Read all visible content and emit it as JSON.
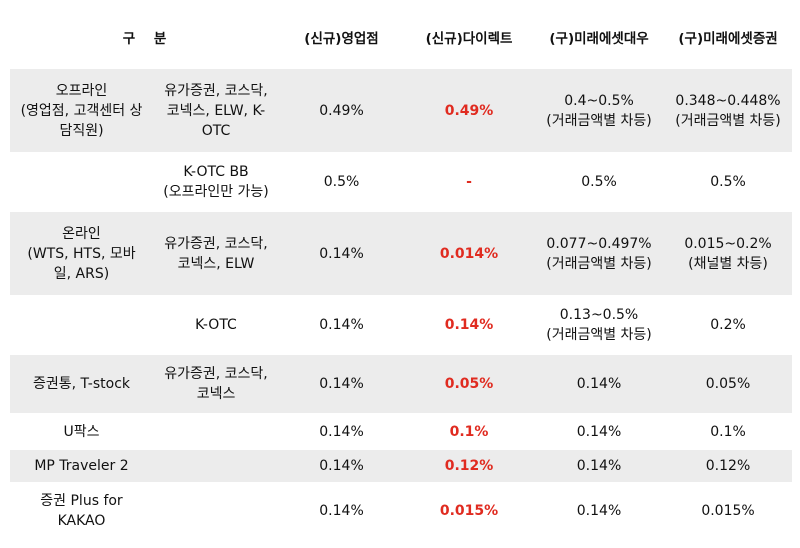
{
  "header": {
    "col1": "구    분",
    "col3": "(신규)영업점",
    "col4": "(신규)다이렉트",
    "col5": "(구)미래에셋대우",
    "col6": "(구)미래에셋증권"
  },
  "rows": [
    {
      "cat": "오프라인\n(영업점, 고객센터 상\n담직원)",
      "sub": "유가증권, 코스닥,\n코넥스, ELW, K-\nOTC",
      "v1": "0.49%",
      "v2": "0.49%",
      "v3": "0.4~0.5%\n(거래금액별 차등)",
      "v4": "0.348~0.448%\n(거래금액별 차등)"
    },
    {
      "cat": "",
      "sub": "K-OTC BB\n(오프라인만 가능)",
      "v1": "0.5%",
      "v2": "-",
      "v3": "0.5%",
      "v4": "0.5%"
    },
    {
      "cat": "온라인\n(WTS, HTS, 모바\n일, ARS)",
      "sub": "유가증권, 코스닥,\n코넥스, ELW",
      "v1": "0.14%",
      "v2": "0.014%",
      "v3": "0.077~0.497%\n(거래금액별 차등)",
      "v4": "0.015~0.2%\n(채널별 차등)"
    },
    {
      "cat": "",
      "sub": "K-OTC",
      "v1": "0.14%",
      "v2": "0.14%",
      "v3": "0.13~0.5%\n(거래금액별 차등)",
      "v4": "0.2%"
    },
    {
      "cat": "증권통, T-stock",
      "sub": "유가증권, 코스닥,\n코넥스",
      "v1": "0.14%",
      "v2": "0.05%",
      "v3": "0.14%",
      "v4": "0.05%"
    },
    {
      "cat": "U팍스",
      "sub": "",
      "v1": "0.14%",
      "v2": "0.1%",
      "v3": "0.14%",
      "v4": "0.1%"
    },
    {
      "cat": "MP Traveler 2",
      "sub": "",
      "v1": "0.14%",
      "v2": "0.12%",
      "v3": "0.14%",
      "v4": "0.12%"
    },
    {
      "cat": "증권 Plus for\nKAKAO",
      "sub": "",
      "v1": "0.14%",
      "v2": "0.015%",
      "v3": "0.14%",
      "v4": "0.015%"
    }
  ]
}
